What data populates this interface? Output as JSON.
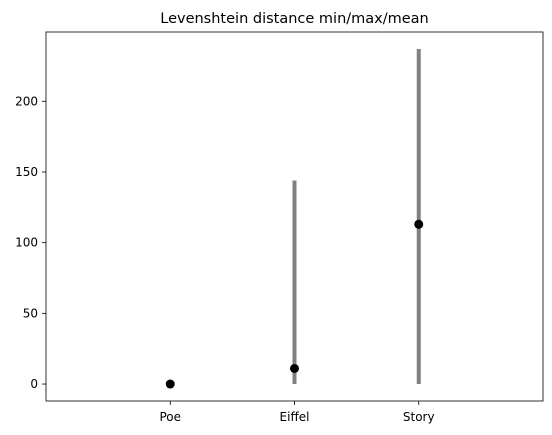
{
  "chart_data": {
    "type": "errorbar",
    "title": "Levenshtein distance min/max/mean",
    "xlabel": "",
    "ylabel": "",
    "categories": [
      "Poe",
      "Eiffel",
      "Story"
    ],
    "min": [
      0,
      0,
      0
    ],
    "max": [
      0,
      144,
      237
    ],
    "mean": [
      0,
      11,
      113
    ],
    "xlim": [
      -1,
      3
    ],
    "ylim": [
      -12,
      249
    ],
    "yticks": [
      0,
      50,
      100,
      150,
      200
    ],
    "grid": false,
    "colors": {
      "range_line": "#808080",
      "mean_marker": "#000000",
      "axes": "#000000"
    }
  }
}
